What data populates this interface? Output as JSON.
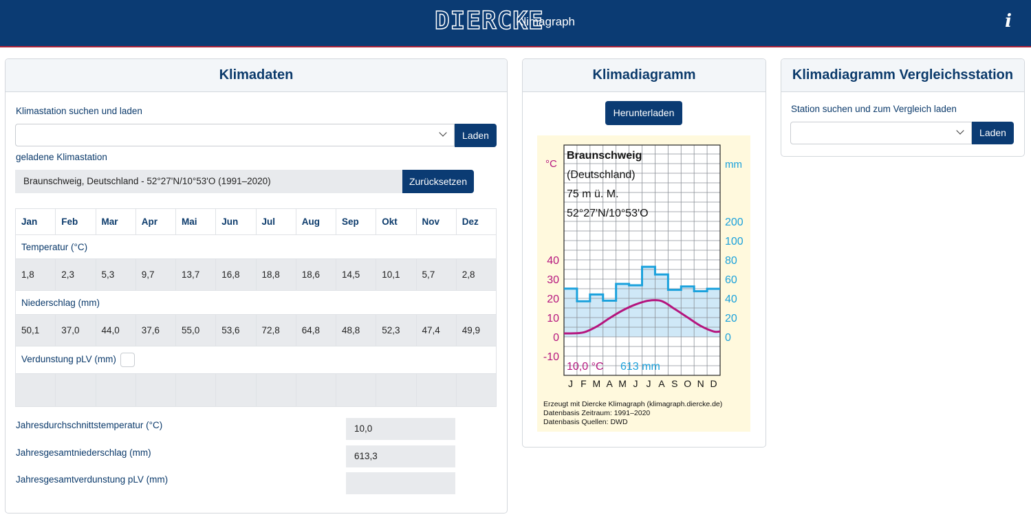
{
  "header": {
    "logo": "DIERCKE",
    "app_title": "Klimagraph",
    "info_icon": "info-icon"
  },
  "klimadaten": {
    "title": "Klimadaten",
    "search_label": "Klimastation suchen und laden",
    "load_button": "Laden",
    "loaded_label": "geladene Klimastation",
    "loaded_station": "Braunschweig, Deutschland - 52°27'N/10°53'O (1991–2020)",
    "reset_button": "Zurücksetzen",
    "months": [
      "Jan",
      "Feb",
      "Mar",
      "Apr",
      "Mai",
      "Jun",
      "Jul",
      "Aug",
      "Sep",
      "Okt",
      "Nov",
      "Dez"
    ],
    "temp_label": "Temperatur (°C)",
    "temps": [
      "1,8",
      "2,3",
      "5,3",
      "9,7",
      "13,7",
      "16,8",
      "18,8",
      "18,6",
      "14,5",
      "10,1",
      "5,7",
      "2,8"
    ],
    "precip_label": "Niederschlag (mm)",
    "precips": [
      "50,1",
      "37,0",
      "44,0",
      "37,6",
      "55,0",
      "53,6",
      "72,8",
      "64,8",
      "48,8",
      "52,3",
      "47,4",
      "49,9"
    ],
    "evap_label": "Verdunstung pLV (mm)",
    "annual_temp_label": "Jahresdurchschnittstemperatur (°C)",
    "annual_temp": "10,0",
    "annual_precip_label": "Jahresgesamtniederschlag (mm)",
    "annual_precip": "613,3",
    "annual_evap_label": "Jahresgesamtverdunstung pLV (mm)",
    "annual_evap": ""
  },
  "klimadiagramm": {
    "title": "Klimadiagramm",
    "download_button": "Herunterladen"
  },
  "vergleich": {
    "title": "Klimadiagramm Vergleichsstation",
    "search_label": "Station suchen und zum Vergleich laden",
    "load_button": "Laden"
  },
  "chart_data": {
    "type": "line",
    "station_name": "Braunschweig",
    "country": "(Deutschland)",
    "elevation": "75 m ü. M.",
    "coords": "52°27'N/10°53'O",
    "temp_unit": "°C",
    "precip_unit": "mm",
    "categories": [
      "J",
      "F",
      "M",
      "A",
      "M",
      "J",
      "J",
      "A",
      "S",
      "O",
      "N",
      "D"
    ],
    "series": [
      {
        "name": "Temperatur",
        "values": [
          1.8,
          2.3,
          5.3,
          9.7,
          13.7,
          16.8,
          18.8,
          18.6,
          14.5,
          10.1,
          5.7,
          2.8
        ],
        "color": "#b5157e"
      },
      {
        "name": "Niederschlag",
        "values": [
          50.1,
          37.0,
          44.0,
          37.6,
          55.0,
          53.6,
          72.8,
          64.8,
          48.8,
          52.3,
          47.4,
          49.9
        ],
        "color": "#1aa1dc"
      }
    ],
    "temp_ticks": [
      "40",
      "30",
      "20",
      "10",
      "0",
      "-10"
    ],
    "precip_ticks": [
      "200",
      "100",
      "80",
      "60",
      "40",
      "20",
      "0"
    ],
    "annual_temp_text": "10,0 °C",
    "annual_precip_text": "613 mm",
    "footer": [
      "Erzeugt mit Diercke Klimagraph (klimagraph.diercke.de)",
      "Datenbasis Zeitraum: 1991–2020",
      "Datenbasis Quellen: DWD"
    ],
    "colors": {
      "background": "#fff9dd",
      "precip_fill": "#cfe8f7"
    }
  }
}
